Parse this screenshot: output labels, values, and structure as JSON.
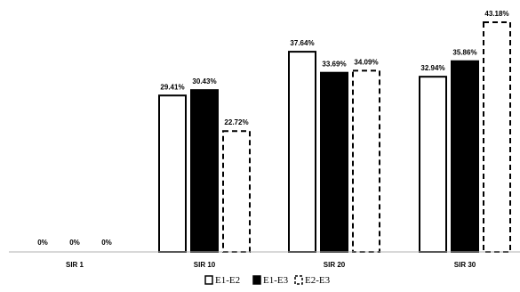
{
  "chart_data": {
    "type": "bar",
    "categories": [
      "SIR 1",
      "SIR 10",
      "SIR 20",
      "SIR 30"
    ],
    "series": [
      {
        "name": "E1-E2",
        "values": [
          0,
          29.41,
          37.64,
          32.94
        ],
        "labels": [
          "0%",
          "29.41%",
          "37.64%",
          "32.94%"
        ],
        "style": "white",
        "stroke": "#000000"
      },
      {
        "name": "E1-E3",
        "values": [
          0,
          30.43,
          33.69,
          35.86
        ],
        "labels": [
          "0%",
          "30.43%",
          "33.69%",
          "35.86%"
        ],
        "style": "black",
        "stroke": "#000000"
      },
      {
        "name": "E2-E3",
        "values": [
          0,
          22.72,
          34.09,
          43.18
        ],
        "labels": [
          "0%",
          "22.72%",
          "34.09%",
          "43.18%"
        ],
        "style": "dashed",
        "stroke": "#000000"
      }
    ],
    "ylim": [
      0,
      45
    ],
    "grid": false,
    "legend_position": "bottom",
    "title": "",
    "xlabel": "",
    "ylabel": ""
  }
}
